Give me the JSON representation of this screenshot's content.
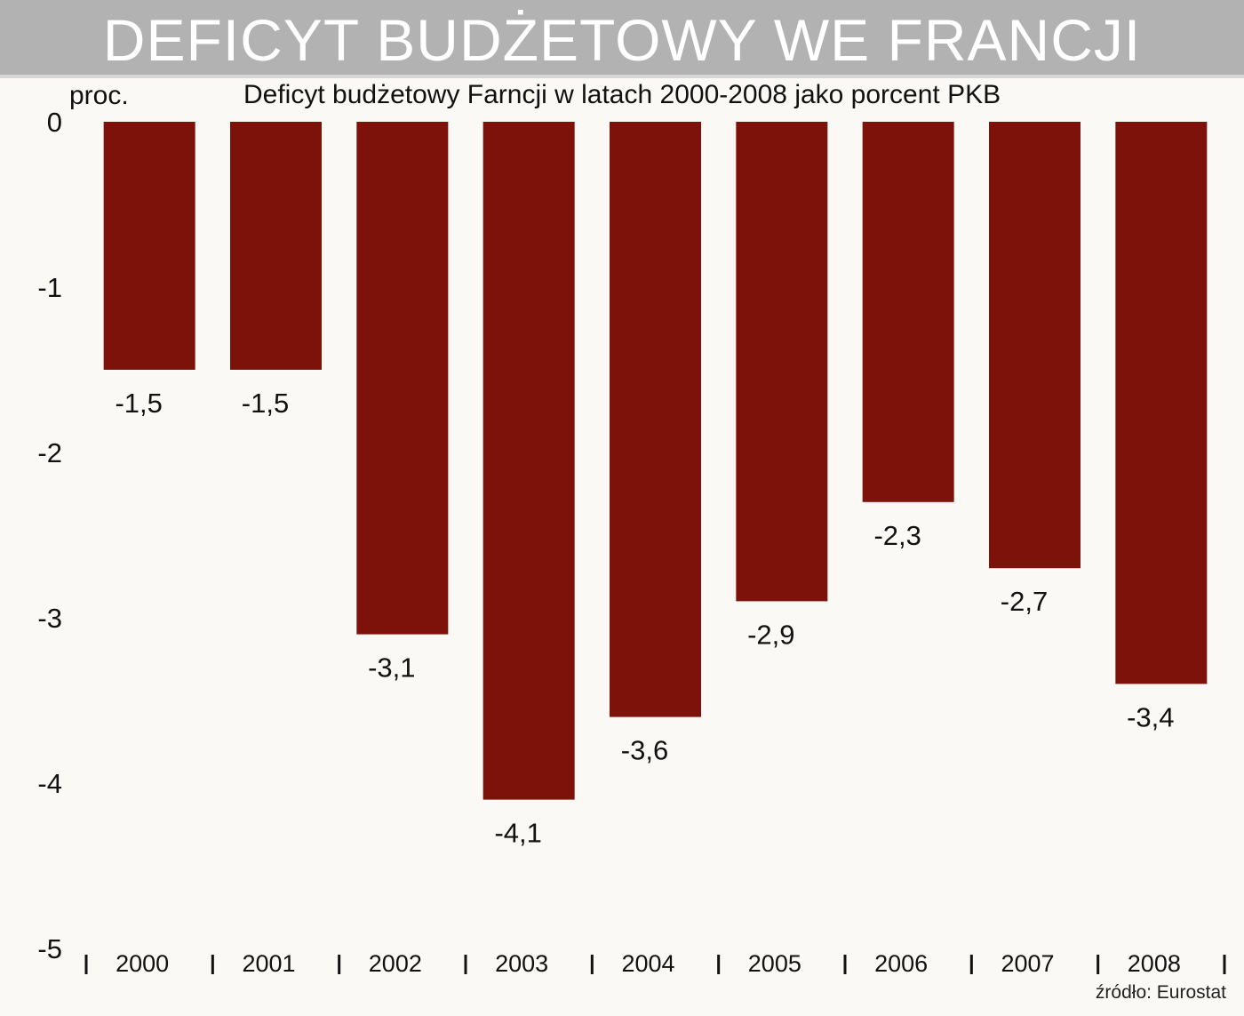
{
  "header": {
    "title": "DEFICYT BUDŻETOWY WE FRANCJI"
  },
  "chart_data": {
    "type": "bar",
    "title": "Deficyt budżetowy Farncji w latach 2000-2008 jako porcent PKB",
    "ylabel": "proc.",
    "xlabel": "",
    "categories": [
      "2000",
      "2001",
      "2002",
      "2003",
      "2004",
      "2005",
      "2006",
      "2007",
      "2008"
    ],
    "values": [
      -1.5,
      -1.5,
      -3.1,
      -4.1,
      -3.6,
      -2.9,
      -2.3,
      -2.7,
      -3.4
    ],
    "value_labels": [
      "-1,5",
      "-1,5",
      "-3,1",
      "-4,1",
      "-3,6",
      "-2,9",
      "-2,3",
      "-2,7",
      "-3,4"
    ],
    "ylim": [
      -5,
      0
    ],
    "yticks": [
      "0",
      "-1",
      "-2",
      "-3",
      "-4",
      "-5"
    ],
    "grid": false,
    "bar_color": "#7c120a"
  },
  "footer": {
    "source": "źródło: Eurostat"
  }
}
